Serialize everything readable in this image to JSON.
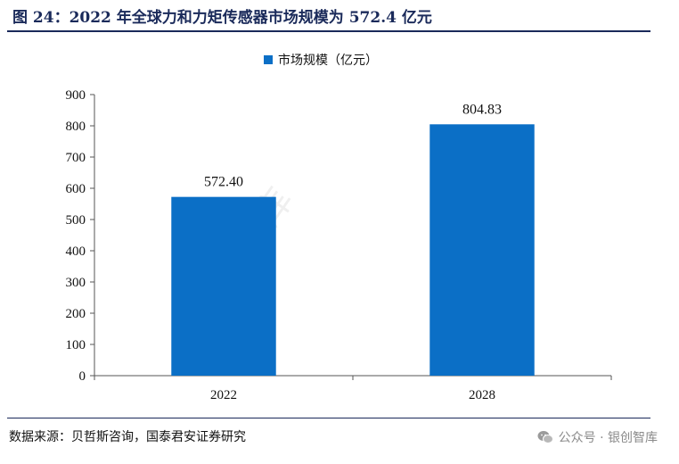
{
  "figure": {
    "title": "图 24：2022 年全球力和力矩传感器市场规模为 572.4 亿元",
    "source": "数据来源：贝哲斯咨询，国泰君安证券研究",
    "account": "公众号 · 银创智库",
    "watermark": "银创智库"
  },
  "colors": {
    "bar": "#0b6fc6",
    "title": "#1a2a5a",
    "axis": "#555555"
  },
  "icons": {
    "wechat": "wechat-icon"
  },
  "chart_data": {
    "type": "bar",
    "categories": [
      "2022",
      "2028"
    ],
    "series": [
      {
        "name": "市场规模（亿元）",
        "values": [
          572.4,
          804.83
        ],
        "labels": [
          "572.40",
          "804.83"
        ]
      }
    ],
    "ylim": [
      0,
      900
    ],
    "yticks": [
      0,
      100,
      200,
      300,
      400,
      500,
      600,
      700,
      800,
      900
    ],
    "grid": false,
    "legend_position": "top-center"
  }
}
